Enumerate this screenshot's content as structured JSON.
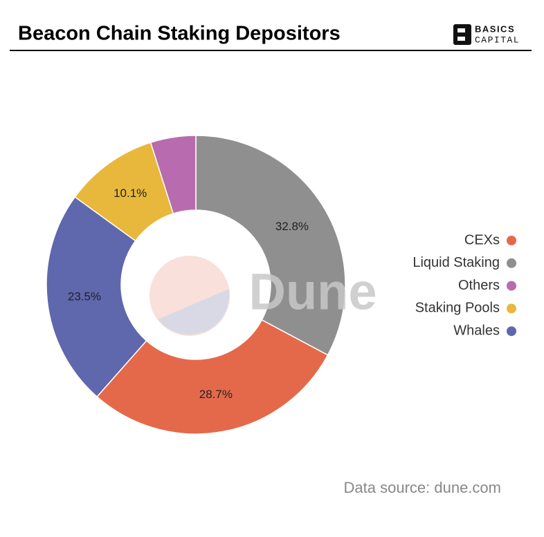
{
  "chart_data": {
    "type": "donut",
    "title": "Beacon Chain Staking Depositors",
    "categories": [
      "CEXs",
      "Liquid Staking",
      "Others",
      "Staking Pools",
      "Whales"
    ],
    "values": [
      28.7,
      32.8,
      4.9,
      10.1,
      23.5
    ],
    "value_labels": [
      "28.7%",
      "32.8%",
      null,
      "10.1%",
      "23.5%"
    ],
    "colors": [
      "#e4694a",
      "#8f8f8f",
      "#b86bae",
      "#e8b83c",
      "#5f67ad"
    ],
    "legend": "right",
    "watermark": "Dune",
    "source": "Data source: dune.com"
  },
  "brand": [
    "BASICS",
    "CAPITAL"
  ]
}
